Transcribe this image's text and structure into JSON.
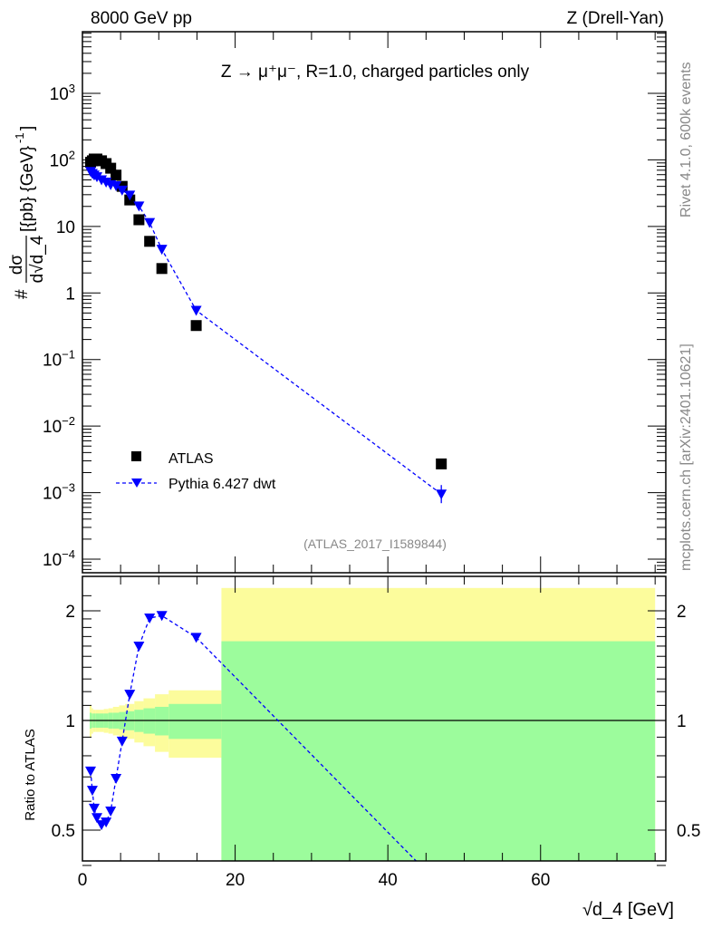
{
  "header": {
    "left": "8000 GeV pp",
    "right": "Z (Drell-Yan)",
    "side_top": "Rivet 4.1.0,  600k events",
    "side_bottom": "mcplots.cern.ch [arXiv:2401.10621]"
  },
  "colors": {
    "data": "#000000",
    "mc": "#0000ff",
    "band_inner": "#9cfc9c",
    "band_outer": "#fcfc9c"
  },
  "chart_data": [
    {
      "type": "scatter",
      "title": "Z → μ⁺μ⁻, R=1.0, charged particles only",
      "analysis_label": "(ATLAS_2017_I1589844)",
      "ylabel_parts": {
        "prefix": "#",
        "num": "dσ",
        "den": "d√d_4",
        "units": "[{pb} {GeV}",
        "exp": "-1",
        "close": "]"
      },
      "xlabel": "√d_4 [GeV]",
      "xlim": [
        0,
        76.4
      ],
      "ylim": [
        0.0001,
        8500
      ],
      "yscale": "log",
      "ytick_labels": [
        {
          "v": 1000,
          "base": "10",
          "exp": "3"
        },
        {
          "v": 100,
          "base": "10",
          "exp": "2"
        },
        {
          "v": 10,
          "base": "10",
          "exp": ""
        },
        {
          "v": 1,
          "base": "1",
          "exp": ""
        },
        {
          "v": 0.1,
          "base": "10",
          "exp": "−1"
        },
        {
          "v": 0.01,
          "base": "10",
          "exp": "−2"
        },
        {
          "v": 0.001,
          "base": "10",
          "exp": "−3"
        },
        {
          "v": 0.0001,
          "base": "10",
          "exp": "−4"
        }
      ],
      "legend": {
        "placement": "lower-left",
        "entries": [
          "ATLAS",
          "Pythia 6.427 dwt"
        ]
      },
      "x": [
        1.07,
        1.3,
        1.54,
        1.9,
        2.5,
        3.1,
        3.7,
        4.4,
        5.2,
        6.2,
        7.4,
        8.8,
        10.4,
        14.9,
        47
      ],
      "series": [
        {
          "name": "ATLAS",
          "values": [
            92,
            97,
            103,
            103,
            97,
            88,
            75,
            59,
            40,
            25,
            12.6,
            5.97,
            2.33,
            0.324,
            0.0027
          ]
        },
        {
          "name": "Pythia 6.427 dwt",
          "values": [
            66.8,
            62.4,
            59,
            55.7,
            50,
            46.3,
            42.3,
            40.9,
            35,
            29.5,
            20.2,
            11.4,
            4.52,
            0.548,
            0.00095
          ]
        }
      ]
    },
    {
      "type": "line",
      "ylabel": "Ratio to ATLAS",
      "xlim": [
        0,
        76.4
      ],
      "ylim": [
        0.35,
        2.35
      ],
      "yscale": "log",
      "ytick_labels": [
        "0.5",
        "1",
        "2"
      ],
      "xtick_labels": [
        "0",
        "20",
        "40",
        "60"
      ],
      "bin_edges": [
        0.95,
        1.2,
        1.4,
        1.7,
        2.2,
        2.8,
        3.4,
        4.0,
        4.8,
        5.6,
        6.8,
        8,
        9.5,
        11.3,
        18.2,
        75
      ],
      "inner_err": [
        0.05,
        0.045,
        0.045,
        0.045,
        0.045,
        0.045,
        0.05,
        0.05,
        0.055,
        0.06,
        0.07,
        0.08,
        0.09,
        0.11,
        0.65
      ],
      "outer_err": [
        0.1,
        0.08,
        0.07,
        0.07,
        0.07,
        0.075,
        0.08,
        0.09,
        0.1,
        0.11,
        0.13,
        0.15,
        0.18,
        0.21,
        1.31
      ],
      "mc_ratio": [
        0.726,
        0.643,
        0.574,
        0.541,
        0.517,
        0.526,
        0.564,
        0.693,
        0.877,
        1.18,
        1.6,
        1.91,
        1.94,
        1.69,
        0.35
      ]
    }
  ]
}
